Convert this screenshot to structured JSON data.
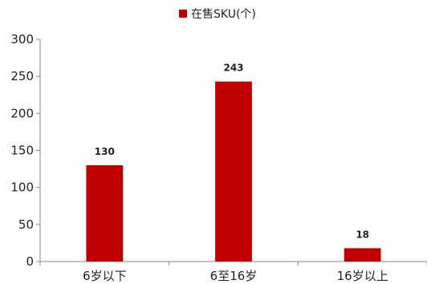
{
  "chart_data": {
    "type": "bar",
    "categories": [
      "6岁以下",
      "6至16岁",
      "16岁以上"
    ],
    "series": [
      {
        "name": "在售SKU(个)",
        "values": [
          130,
          243,
          18
        ]
      }
    ],
    "ylim": [
      0,
      300
    ],
    "yticks": [
      0,
      50,
      100,
      150,
      200,
      250,
      300
    ],
    "yticks_labels": [
      "0",
      "50",
      "100",
      "150",
      "200",
      "250",
      "300"
    ],
    "data_labels": [
      "130",
      "243",
      "18"
    ],
    "legend_position": "top",
    "grid": false,
    "bar_color": "#c00000"
  }
}
